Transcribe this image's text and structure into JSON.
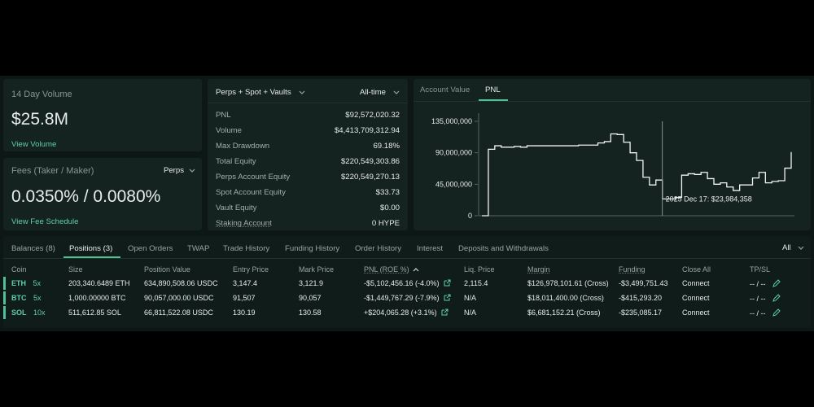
{
  "volume_card": {
    "label": "14 Day Volume",
    "value": "$25.8M",
    "link": "View Volume"
  },
  "fees_card": {
    "label": "Fees (Taker / Maker)",
    "selector": "Perps",
    "value": "0.0350% / 0.0080%",
    "link": "View Fee Schedule"
  },
  "stats": {
    "filter": "Perps + Spot + Vaults",
    "range": "All-time",
    "rows": [
      {
        "key": "PNL",
        "value": "$92,572,020.32"
      },
      {
        "key": "Volume",
        "value": "$4,413,709,312.94"
      },
      {
        "key": "Max Drawdown",
        "value": "69.18%"
      },
      {
        "key": "Total Equity",
        "value": "$220,549,303.86"
      },
      {
        "key": "Perps Account Equity",
        "value": "$220,549,270.13"
      },
      {
        "key": "Spot Account Equity",
        "value": "$33.73"
      },
      {
        "key": "Vault Equity",
        "value": "$0.00"
      },
      {
        "key": "Staking Account",
        "value": "0 HYPE"
      }
    ]
  },
  "chart_tabs": [
    "Account Value",
    "PNL"
  ],
  "chart_data": {
    "type": "line",
    "active_tab": "PNL",
    "ylim": [
      0,
      135000000
    ],
    "ytick_labels": [
      "135,000,000",
      "90,000,000",
      "45,000,000",
      "0"
    ],
    "ytick_values": [
      135000000,
      90000000,
      45000000,
      0
    ],
    "tooltip": "2025 Dec 17: $23,984,358",
    "values": [
      0,
      95000000,
      100000000,
      98000000,
      98000000,
      99000000,
      98000000,
      100000000,
      100000000,
      100000000,
      100000000,
      100000000,
      100000000,
      100000000,
      100000000,
      101000000,
      101000000,
      101000000,
      104000000,
      106000000,
      117000000,
      116000000,
      105000000,
      90000000,
      79000000,
      55000000,
      44000000,
      51000000,
      23984358,
      24000000,
      26000000,
      58000000,
      60000000,
      59000000,
      62000000,
      53000000,
      45000000,
      47000000,
      41000000,
      36000000,
      44000000,
      44000000,
      54000000,
      62000000,
      47000000,
      49000000,
      50000000,
      68000000,
      91000000
    ]
  },
  "tabs": [
    "Balances (8)",
    "Positions (3)",
    "Open Orders",
    "TWAP",
    "Trade History",
    "Funding History",
    "Order History",
    "Interest",
    "Deposits and Withdrawals"
  ],
  "filter_all": "All",
  "table": {
    "headers": {
      "coin": "Coin",
      "size": "Size",
      "position_value": "Position Value",
      "entry_price": "Entry Price",
      "mark_price": "Mark Price",
      "pnl": "PNL (ROE %)",
      "liq_price": "Liq. Price",
      "margin": "Margin",
      "funding": "Funding",
      "close_all": "Close All",
      "tpsl": "TP/SL"
    },
    "rows": [
      {
        "coin": "ETH",
        "lev": "5x",
        "size": "203,340.6489 ETH",
        "value": "634,890,508.06 USDC",
        "entry": "3,147.4",
        "mark": "3,121.9",
        "pnl": "-$5,102,456.16 (-4.0%)",
        "pnl_sign": "neg",
        "liq": "2,115.4",
        "margin": "$126,978,101.61 (Cross)",
        "funding": "-$3,499,751.43",
        "action": "Connect",
        "tpsl": "-- / --"
      },
      {
        "coin": "BTC",
        "lev": "5x",
        "size": "1,000.00000 BTC",
        "value": "90,057,000.00 USDC",
        "entry": "91,507",
        "mark": "90,057",
        "pnl": "-$1,449,767.29 (-7.9%)",
        "pnl_sign": "neg",
        "liq": "N/A",
        "margin": "$18,011,400.00 (Cross)",
        "funding": "-$415,293.20",
        "action": "Connect",
        "tpsl": "-- / --"
      },
      {
        "coin": "SOL",
        "lev": "10x",
        "size": "511,612.85 SOL",
        "value": "66,811,522.08 USDC",
        "entry": "130.19",
        "mark": "130.58",
        "pnl": "+$204,065.28 (+3.1%)",
        "pnl_sign": "pos",
        "liq": "N/A",
        "margin": "$6,681,152.21 (Cross)",
        "funding": "-$235,085.17",
        "action": "Connect",
        "tpsl": "-- / --"
      }
    ]
  },
  "colors": {
    "green": "#4fc192",
    "red": "#e06a7a",
    "bg": "#0d1716",
    "card": "#142220"
  }
}
